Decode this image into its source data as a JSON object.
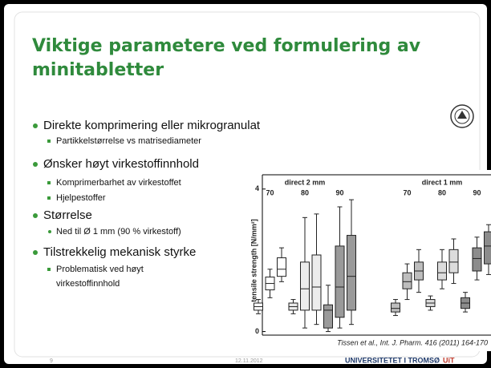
{
  "slide": {
    "title_lines": [
      "Viktige parametere ved formulering av",
      "minitabletter"
    ],
    "bullets": [
      {
        "text": "Direkte komprimering eller mikrogranulat",
        "sub": [
          [
            "Partikkelstørrelse  vs matrisediameter"
          ]
        ]
      },
      {
        "text": "Ønsker høyt virkestoffinnhold",
        "sub": [
          [
            "Komprimerbarhet av virkestoffet"
          ],
          [
            "Hjelpestoffer"
          ]
        ]
      },
      {
        "text": "Størrelse",
        "sub": [
          [
            "Ned til Ø 1 mm (90 % virkestoff)"
          ]
        ]
      },
      {
        "text": "Tilstrekkelig mekanisk styrke",
        "sub": [
          [
            "Problematisk ved høyt",
            "virkestoffinnhold"
          ]
        ]
      }
    ],
    "page_number": "9",
    "date": "12.11.2012",
    "university": "UNIVERSITETET I TROMSØ",
    "university_short": "UiT"
  },
  "chart_data": {
    "type": "box",
    "ylabel": "tensile strength [N/mm²]",
    "ylim": [
      -0.1,
      4.4
    ],
    "yticks": [
      0,
      4
    ],
    "citation": "Tissen et al., Int. J. Pharm. 416 (2011) 164-170",
    "panels": [
      {
        "label": "direct 2 mm",
        "groups": [
          {
            "label": "70",
            "color": "#ffffff",
            "boxes": [
              {
                "min": 0.5,
                "q1": 0.6,
                "median": 0.7,
                "q3": 0.8,
                "max": 0.9
              },
              {
                "min": 0.95,
                "q1": 1.17,
                "median": 1.35,
                "q3": 1.53,
                "max": 1.75
              },
              {
                "min": 1.4,
                "q1": 1.55,
                "median": 1.75,
                "q3": 2.07,
                "max": 2.35
              }
            ]
          },
          {
            "label": "80",
            "color": "#ececec",
            "boxes": [
              {
                "min": 0.5,
                "q1": 0.6,
                "median": 0.7,
                "q3": 0.8,
                "max": 0.9
              },
              {
                "min": 0.1,
                "q1": 0.6,
                "median": 1.2,
                "q3": 1.95,
                "max": 3.2
              },
              {
                "min": 0.2,
                "q1": 0.6,
                "median": 1.25,
                "q3": 2.15,
                "max": 3.3
              }
            ]
          },
          {
            "label": "90",
            "color": "#9a9a9a",
            "boxes": [
              {
                "min": 0,
                "q1": 0.1,
                "median": 0.6,
                "q3": 0.75,
                "max": 1.3
              },
              {
                "min": 0.1,
                "q1": 0.4,
                "median": 1.25,
                "q3": 2.4,
                "max": 3.5
              },
              {
                "min": 0.2,
                "q1": 0.6,
                "median": 1.55,
                "q3": 2.7,
                "max": 3.7
              }
            ]
          }
        ]
      },
      {
        "label": "direct 1 mm",
        "groups": [
          {
            "label": "70",
            "color": "#bdbdbd",
            "boxes": [
              {
                "min": 0.45,
                "q1": 0.55,
                "median": 0.65,
                "q3": 0.8,
                "max": 0.9
              },
              {
                "min": 0.9,
                "q1": 1.2,
                "median": 1.4,
                "q3": 1.65,
                "max": 1.9
              },
              {
                "min": 1.1,
                "q1": 1.45,
                "median": 1.7,
                "q3": 1.95,
                "max": 2.3
              }
            ]
          },
          {
            "label": "80",
            "color": "#dcdcdc",
            "boxes": [
              {
                "min": 0.6,
                "q1": 0.7,
                "median": 0.8,
                "q3": 0.9,
                "max": 1.0
              },
              {
                "min": 1.2,
                "q1": 1.45,
                "median": 1.65,
                "q3": 1.95,
                "max": 2.3
              },
              {
                "min": 1.35,
                "q1": 1.65,
                "median": 1.95,
                "q3": 2.3,
                "max": 2.6
              }
            ]
          },
          {
            "label": "90",
            "color": "#8c8c8c",
            "boxes": [
              {
                "min": 0.55,
                "q1": 0.65,
                "median": 0.8,
                "q3": 0.95,
                "max": 1.1
              },
              {
                "min": 1.45,
                "q1": 1.7,
                "median": 2.05,
                "q3": 2.35,
                "max": 2.65
              },
              {
                "min": 1.6,
                "q1": 1.9,
                "median": 2.4,
                "q3": 2.8,
                "max": 3.0
              }
            ]
          }
        ]
      }
    ]
  }
}
